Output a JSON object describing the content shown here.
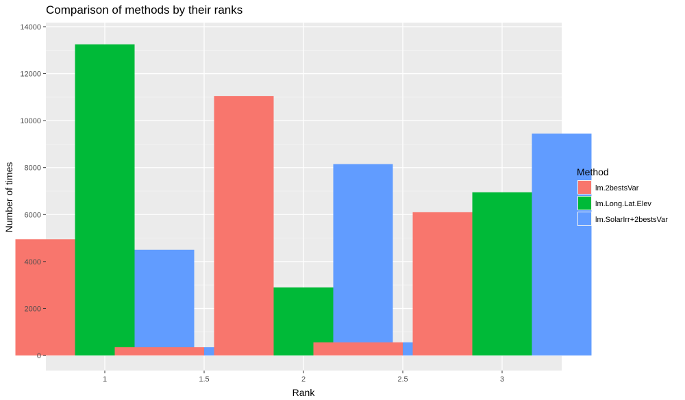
{
  "chart_data": {
    "type": "bar",
    "title": "Comparison of methods by their ranks",
    "xlabel": "Rank",
    "ylabel": "Number of times",
    "x_ticks": [
      "1",
      "1.5",
      "2",
      "2.5",
      "3"
    ],
    "y_ticks": [
      "0",
      "2000",
      "4000",
      "6000",
      "8000",
      "10000",
      "12000",
      "14000"
    ],
    "ylim": [
      -750,
      14000
    ],
    "grid": true,
    "legend_position": "right",
    "legend_title": "Method",
    "categories": [
      "1",
      "1.5",
      "2",
      "2.5",
      "3"
    ],
    "series": [
      {
        "name": "lm.2bestsVar",
        "color": "#F8766D",
        "values": [
          4950,
          350,
          11050,
          560,
          6100
        ]
      },
      {
        "name": "lm.Long.Lat.Elev",
        "color": "#00BA38",
        "values": [
          13250,
          0,
          2900,
          0,
          6950
        ]
      },
      {
        "name": "lm.SolarIrr+2bestsVar",
        "color": "#619CFF",
        "values": [
          4500,
          350,
          8150,
          560,
          9450
        ]
      }
    ],
    "notes_bars_at_1_5_and_2_5": "two bars only (lm.2bestsVar and lm.SolarIrr+2bestsVar)"
  }
}
